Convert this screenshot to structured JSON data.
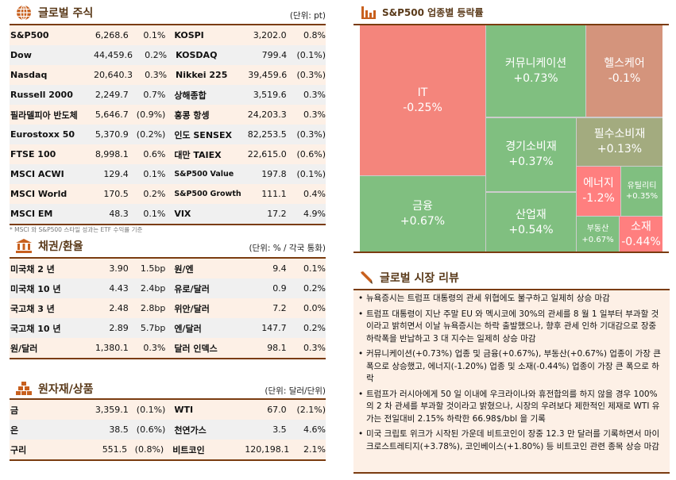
{
  "equity": {
    "title": "글로벌 주식",
    "unit": "(단위: pt)",
    "note": "* MSCI 와 S&P500 스타일 성과는 ETF 수익률 기준",
    "rows": [
      [
        "S&P500",
        "6,268.6",
        "0.1%",
        "KOSPI",
        "3,202.0",
        "0.8%"
      ],
      [
        "Dow",
        "44,459.6",
        "0.2%",
        "KOSDAQ",
        "799.4",
        "(0.1%)"
      ],
      [
        "Nasdaq",
        "20,640.3",
        "0.3%",
        "Nikkei 225",
        "39,459.6",
        "(0.3%)"
      ],
      [
        "Russell 2000",
        "2,249.7",
        "0.7%",
        "상해종합",
        "3,519.6",
        "0.3%"
      ],
      [
        "필라델피아 반도체",
        "5,646.7",
        "(0.9%)",
        "홍콩 항셍",
        "24,203.3",
        "0.3%"
      ],
      [
        "Eurostoxx 50",
        "5,370.9",
        "(0.2%)",
        "인도 SENSEX",
        "82,253.5",
        "(0.3%)"
      ],
      [
        "FTSE 100",
        "8,998.1",
        "0.6%",
        "대만 TAIEX",
        "22,615.0",
        "(0.6%)"
      ],
      [
        "MSCI ACWI",
        "129.4",
        "0.1%",
        "S&P500 Value",
        "197.8",
        "(0.1%)"
      ],
      [
        "MSCI World",
        "170.5",
        "0.2%",
        "S&P500 Growth",
        "111.1",
        "0.4%"
      ],
      [
        "MSCI EM",
        "48.3",
        "0.1%",
        "VIX",
        "17.2",
        "4.9%"
      ]
    ]
  },
  "bonds": {
    "title": "채권/환율",
    "unit": "(단위: % / 각국 통화)",
    "rows": [
      [
        "미국채 2 년",
        "3.90",
        "1.5bp",
        "원/엔",
        "9.4",
        "0.1%"
      ],
      [
        "미국채 10 년",
        "4.43",
        "2.4bp",
        "유로/달러",
        "0.9",
        "0.2%"
      ],
      [
        "국고채 3 년",
        "2.48",
        "2.8bp",
        "위안/달러",
        "7.2",
        "0.0%"
      ],
      [
        "국고채 10 년",
        "2.89",
        "5.7bp",
        "엔/달러",
        "147.7",
        "0.2%"
      ],
      [
        "원/달러",
        "1,380.1",
        "0.3%",
        "달러 인덱스",
        "98.1",
        "0.3%"
      ]
    ]
  },
  "commodities": {
    "title": "원자재/상품",
    "unit": "(단위: 달러/단위)",
    "rows": [
      [
        "금",
        "3,359.1",
        "(0.1%)",
        "WTI",
        "67.0",
        "(2.1%)"
      ],
      [
        "은",
        "38.5",
        "(0.6%)",
        "천연가스",
        "3.5",
        "4.6%"
      ],
      [
        "구리",
        "551.5",
        "(0.8%)",
        "비트코인",
        "120,198.1",
        "2.1%"
      ]
    ]
  },
  "treemap": {
    "title": "S&P500 업종별 등락률",
    "sectors": [
      {
        "name": "IT",
        "change": "-0.25%",
        "color": "#f4857c"
      },
      {
        "name": "금융",
        "change": "+0.67%",
        "color": "#80bf80"
      },
      {
        "name": "커뮤니케이션",
        "change": "+0.73%",
        "color": "#80bf80"
      },
      {
        "name": "헬스케어",
        "change": "-0.1%",
        "color": "#d4947c"
      },
      {
        "name": "경기소비재",
        "change": "+0.37%",
        "color": "#80bf80"
      },
      {
        "name": "산업재",
        "change": "+0.54%",
        "color": "#80bf80"
      },
      {
        "name": "필수소비재",
        "change": "+0.13%",
        "color": "#a3ab7f"
      },
      {
        "name": "에너지",
        "change": "-1.2%",
        "color": "#ff7f7f"
      },
      {
        "name": "유틸리티",
        "change": "+0.35%",
        "color": "#80bf80"
      },
      {
        "name": "부동산",
        "change": "+0.67%",
        "color": "#80bf80"
      },
      {
        "name": "소재",
        "change": "-0.44%",
        "color": "#ff7f7f"
      }
    ]
  },
  "review": {
    "title": "글로벌 시장 리뷰",
    "items": [
      "뉴욕증시는 트럼프 대통령의 관세 위협에도 불구하고 일제히 상승 마감",
      "트럼프 대통령이 지난 주말 EU 와 멕시코에 30%의 관세를 8 월 1 일부터 부과할 것이라고 밝히면서 이날 뉴욕증시는 하락 출발했으나, 향후 관세 인하 기대감으로 장중 하락폭을 반납하고 3 대 지수는 일제히 상승 마감",
      "커뮤니케이션(+0.73%) 업종 및 금융(+0.67%), 부동산(+0.67%) 업종이 가장 큰 폭으로 상승했고, 에너지(-1.20%) 업종 및 소재(-0.44%) 업종이 가장 큰 폭으로 하락",
      "트럼프가 러시아에게 50 일 이내에 우크라이나와 휴전합의를 하지 않을 경우 100%의 2 차 관세를 부과할 것이라고 밝혔으나, 시장의 우려보다 제한적인 제재로 WTI 유가는 전일대비 2.15% 하락한 66.98$/bbl 을 기록",
      "미국 크립토 위크가 시작된 가운데 비트코인이 장중 12.3 만 달러를 기록하면서 마이크로스트레티지(+3.78%), 코인베이스(+1.80%) 등 비트코인 관련 종목 상승 마감"
    ]
  }
}
